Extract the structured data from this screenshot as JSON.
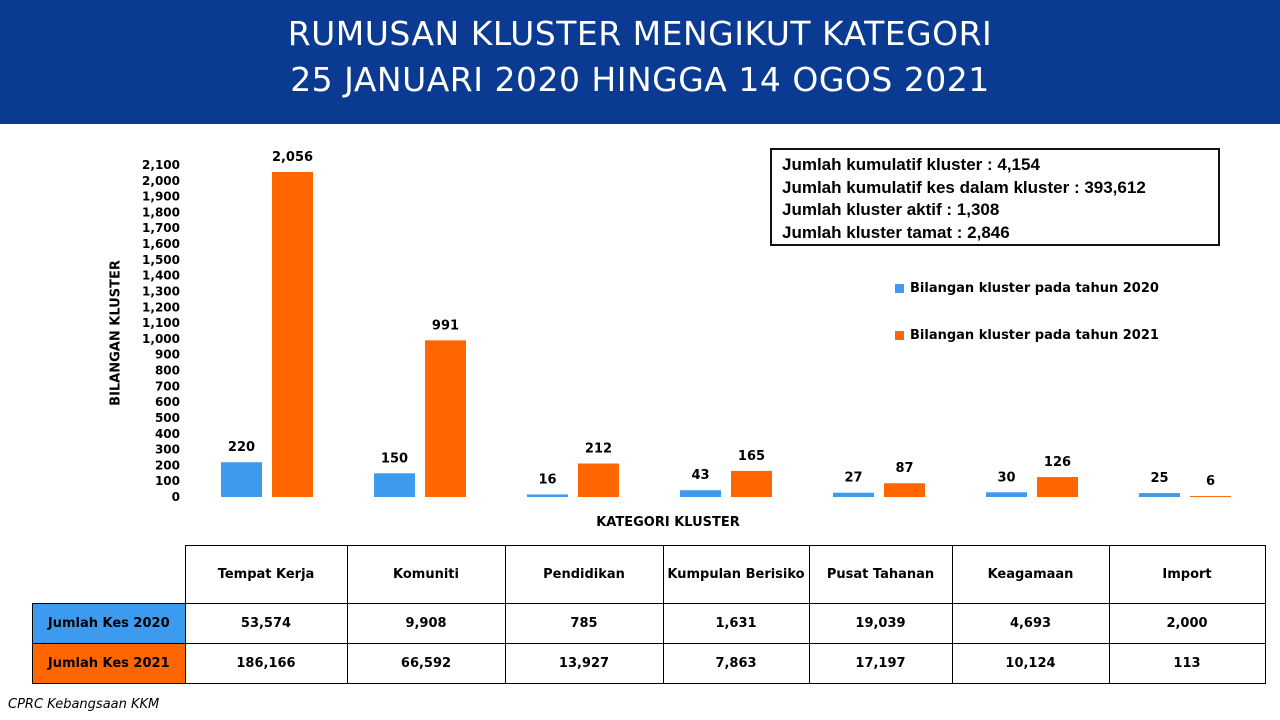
{
  "header": {
    "title_line1": "RUMUSAN KLUSTER MENGIKUT KATEGORI",
    "title_line2": "25 JANUARI 2020 HINGGA 14 OGOS 2021",
    "bg_color": "#0a3a92"
  },
  "summary": {
    "line1": "Jumlah kumulatif kluster : 4,154",
    "line2": "Jumlah kumulatif kes dalam kluster : 393,612",
    "line3": "Jumlah kluster aktif : 1,308",
    "line4": "Jumlah kluster tamat : 2,846"
  },
  "chart_data": {
    "type": "bar",
    "ylabel": "BILANGAN KLUSTER",
    "xlabel": "KATEGORI KLUSTER",
    "ylim": [
      0,
      2100
    ],
    "ytick_step": 100,
    "grid": false,
    "legend_position": "right",
    "categories": [
      "Tempat Kerja",
      "Komuniti",
      "Pendidikan",
      "Kumpulan Berisiko",
      "Pusat Tahanan",
      "Keagamaan",
      "Import"
    ],
    "series": [
      {
        "name": "Bilangan kluster pada tahun 2020",
        "color": "#3d9bef",
        "values": [
          220,
          150,
          16,
          43,
          27,
          30,
          25
        ]
      },
      {
        "name": "Bilangan kluster pada tahun 2021",
        "color": "#ff6600",
        "values": [
          2056,
          991,
          212,
          165,
          87,
          126,
          6
        ]
      }
    ]
  },
  "table": {
    "headers": [
      "Tempat Kerja",
      "Komuniti",
      "Pendidikan",
      "Kumpulan Berisiko",
      "Pusat Tahanan",
      "Keagamaan",
      "Import"
    ],
    "rows": [
      {
        "label": "Jumlah Kes 2020",
        "color": "#3d9bef",
        "values": [
          "53,574",
          "9,908",
          "785",
          "1,631",
          "19,039",
          "4,693",
          "2,000"
        ]
      },
      {
        "label": "Jumlah Kes 2021",
        "color": "#ff6600",
        "values": [
          "186,166",
          "66,592",
          "13,927",
          "7,863",
          "17,197",
          "10,124",
          "113"
        ]
      }
    ]
  },
  "footer": "CPRC Kebangsaan KKM"
}
